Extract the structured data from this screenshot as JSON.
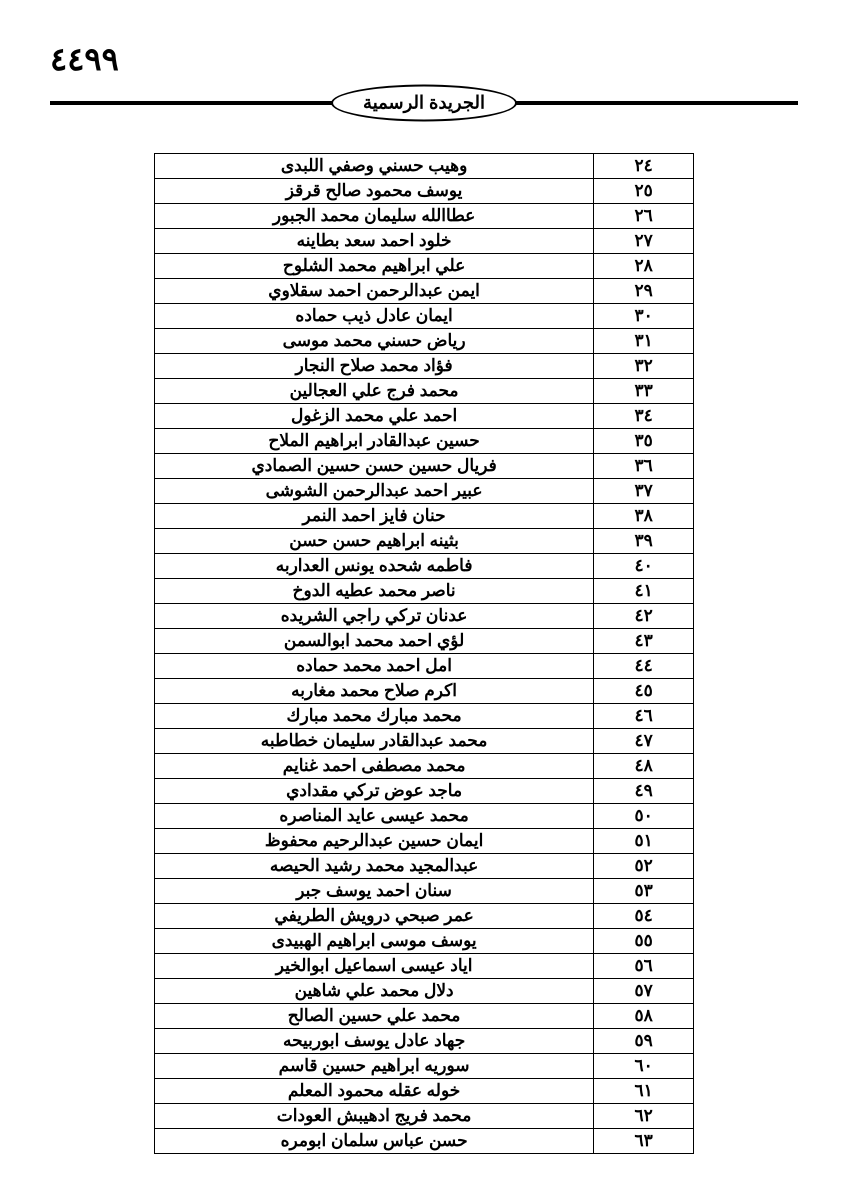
{
  "page_number": "٤٤٩٩",
  "header_title": "الجريدة الرسمية",
  "rows": [
    {
      "num": "٢٤",
      "name": "وهيب حسني وصفي اللبدى"
    },
    {
      "num": "٢٥",
      "name": "يوسف محمود صالح قرقز"
    },
    {
      "num": "٢٦",
      "name": "عطاالله سليمان محمد الجبور"
    },
    {
      "num": "٢٧",
      "name": "خلود احمد سعد بطاينه"
    },
    {
      "num": "٢٨",
      "name": "علي ابراهيم محمد الشلوح"
    },
    {
      "num": "٢٩",
      "name": "ايمن عبدالرحمن احمد سقلاوي"
    },
    {
      "num": "٣٠",
      "name": "ايمان عادل ذيب حماده"
    },
    {
      "num": "٣١",
      "name": "رياض حسني محمد موسى"
    },
    {
      "num": "٣٢",
      "name": "فؤاد محمد صلاح النجار"
    },
    {
      "num": "٣٣",
      "name": "محمد فرج علي العجالين"
    },
    {
      "num": "٣٤",
      "name": "احمد علي محمد الزغول"
    },
    {
      "num": "٣٥",
      "name": "حسين عبدالقادر ابراهيم الملاح"
    },
    {
      "num": "٣٦",
      "name": "فريال حسين حسن حسين الصمادي"
    },
    {
      "num": "٣٧",
      "name": "عبير احمد عبدالرحمن الشوشى"
    },
    {
      "num": "٣٨",
      "name": "حنان فايز احمد النمر"
    },
    {
      "num": "٣٩",
      "name": "بثينه ابراهيم حسن حسن"
    },
    {
      "num": "٤٠",
      "name": "فاطمه شحده يونس العداربه"
    },
    {
      "num": "٤١",
      "name": "ناصر محمد عطيه الدوخ"
    },
    {
      "num": "٤٢",
      "name": "عدنان تركي راجي الشريده"
    },
    {
      "num": "٤٣",
      "name": "لؤي احمد محمد ابوالسمن"
    },
    {
      "num": "٤٤",
      "name": "امل احمد محمد حماده"
    },
    {
      "num": "٤٥",
      "name": "اكرم صلاح محمد مغاربه"
    },
    {
      "num": "٤٦",
      "name": "محمد مبارك محمد مبارك"
    },
    {
      "num": "٤٧",
      "name": "محمد عبدالقادر سليمان خطاطبه"
    },
    {
      "num": "٤٨",
      "name": "محمد مصطفى احمد غنايم"
    },
    {
      "num": "٤٩",
      "name": "ماجد عوض تركي مقدادي"
    },
    {
      "num": "٥٠",
      "name": "محمد عيسى عايد المناصره"
    },
    {
      "num": "٥١",
      "name": "ايمان حسين عبدالرحيم محفوظ"
    },
    {
      "num": "٥٢",
      "name": "عبدالمجيد محمد رشيد الحيصه"
    },
    {
      "num": "٥٣",
      "name": "سنان احمد يوسف جبر"
    },
    {
      "num": "٥٤",
      "name": "عمر صبحي درويش الطريفي"
    },
    {
      "num": "٥٥",
      "name": "يوسف موسى ابراهيم الهبيدى"
    },
    {
      "num": "٥٦",
      "name": "اياد عيسى اسماعيل ابوالخير"
    },
    {
      "num": "٥٧",
      "name": "دلال محمد علي شاهين"
    },
    {
      "num": "٥٨",
      "name": "محمد علي حسين الصالح"
    },
    {
      "num": "٥٩",
      "name": "جهاد عادل يوسف ابوربيحه"
    },
    {
      "num": "٦٠",
      "name": "سوريه ابراهيم حسين قاسم"
    },
    {
      "num": "٦١",
      "name": "خوله عقله محمود المعلم"
    },
    {
      "num": "٦٢",
      "name": "محمد فريج ادهيبش العودات"
    },
    {
      "num": "٦٣",
      "name": "حسن عباس سلمان ابومره"
    }
  ]
}
